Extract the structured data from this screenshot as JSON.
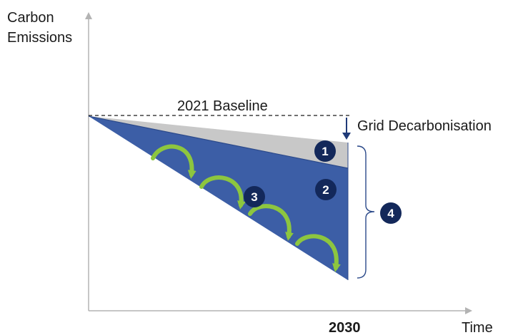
{
  "axes": {
    "y_label_line1": "Carbon",
    "y_label_line2": "Emissions",
    "x_label": "Time",
    "x_tick": "2030"
  },
  "annotations": {
    "baseline": "2021 Baseline",
    "grid": "Grid Decarbonisation"
  },
  "markers": [
    "1",
    "2",
    "3",
    "4"
  ],
  "colors": {
    "axis": "#b3b3b3",
    "grid_wedge": "#c8c8c8",
    "main_wedge": "#3c5ea6",
    "wedge_inner_line": "#2c4a8a",
    "arrow_green": "#8dc63f",
    "marker_fill": "#13285a",
    "dark_arrow": "#1f3a78"
  }
}
